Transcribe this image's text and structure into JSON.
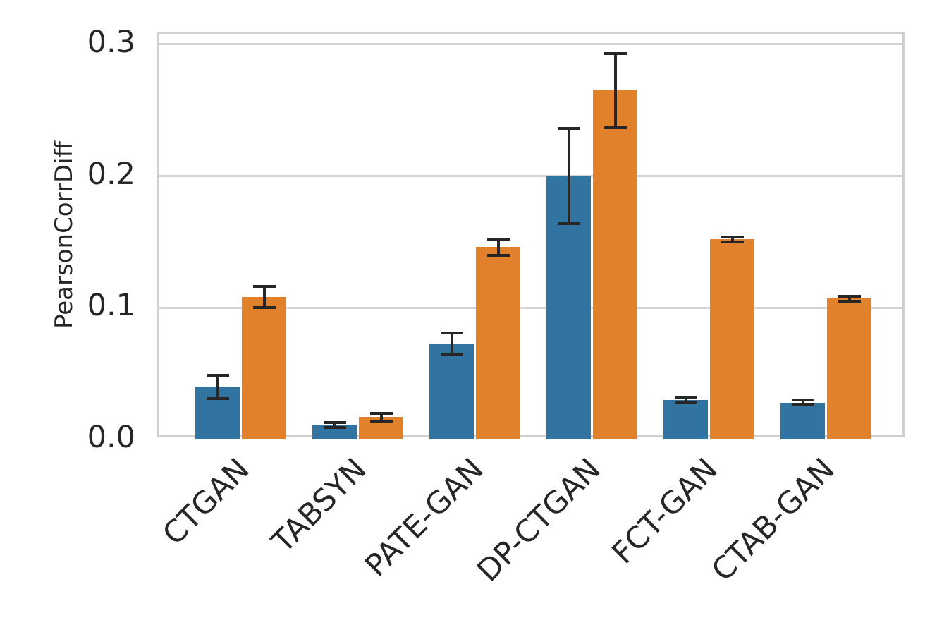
{
  "chart_data": {
    "type": "bar",
    "title": "",
    "ylabel": "PearsonCorrDiff",
    "xlabel": "",
    "categories": [
      "CTGAN",
      "TABSYN",
      "PATE-GAN",
      "DP-CTGAN",
      "FCT-GAN",
      "CTAB-GAN"
    ],
    "series": [
      {
        "name": "series-blue",
        "color": "#3274a1",
        "values": [
          0.04,
          0.011,
          0.073,
          0.2,
          0.03,
          0.028
        ],
        "errors": [
          0.009,
          0.002,
          0.008,
          0.036,
          0.002,
          0.002
        ]
      },
      {
        "name": "series-orange",
        "color": "#e1812c",
        "values": [
          0.108,
          0.017,
          0.146,
          0.265,
          0.152,
          0.107
        ],
        "errors": [
          0.008,
          0.003,
          0.006,
          0.028,
          0.002,
          0.002
        ]
      }
    ],
    "yticks": [
      "0.0",
      "0.1",
      "0.2",
      "0.3"
    ],
    "ytick_values": [
      0.0,
      0.1,
      0.2,
      0.3
    ],
    "ylim": [
      0,
      0.308
    ],
    "grid": "horizontal",
    "gridline_color": "#d4d4d4",
    "spine_color": "#cfcfcf",
    "error_bar_color": "#262626",
    "text_color": "#262626",
    "legend": "none",
    "x_tick_rotation_deg": 45
  }
}
